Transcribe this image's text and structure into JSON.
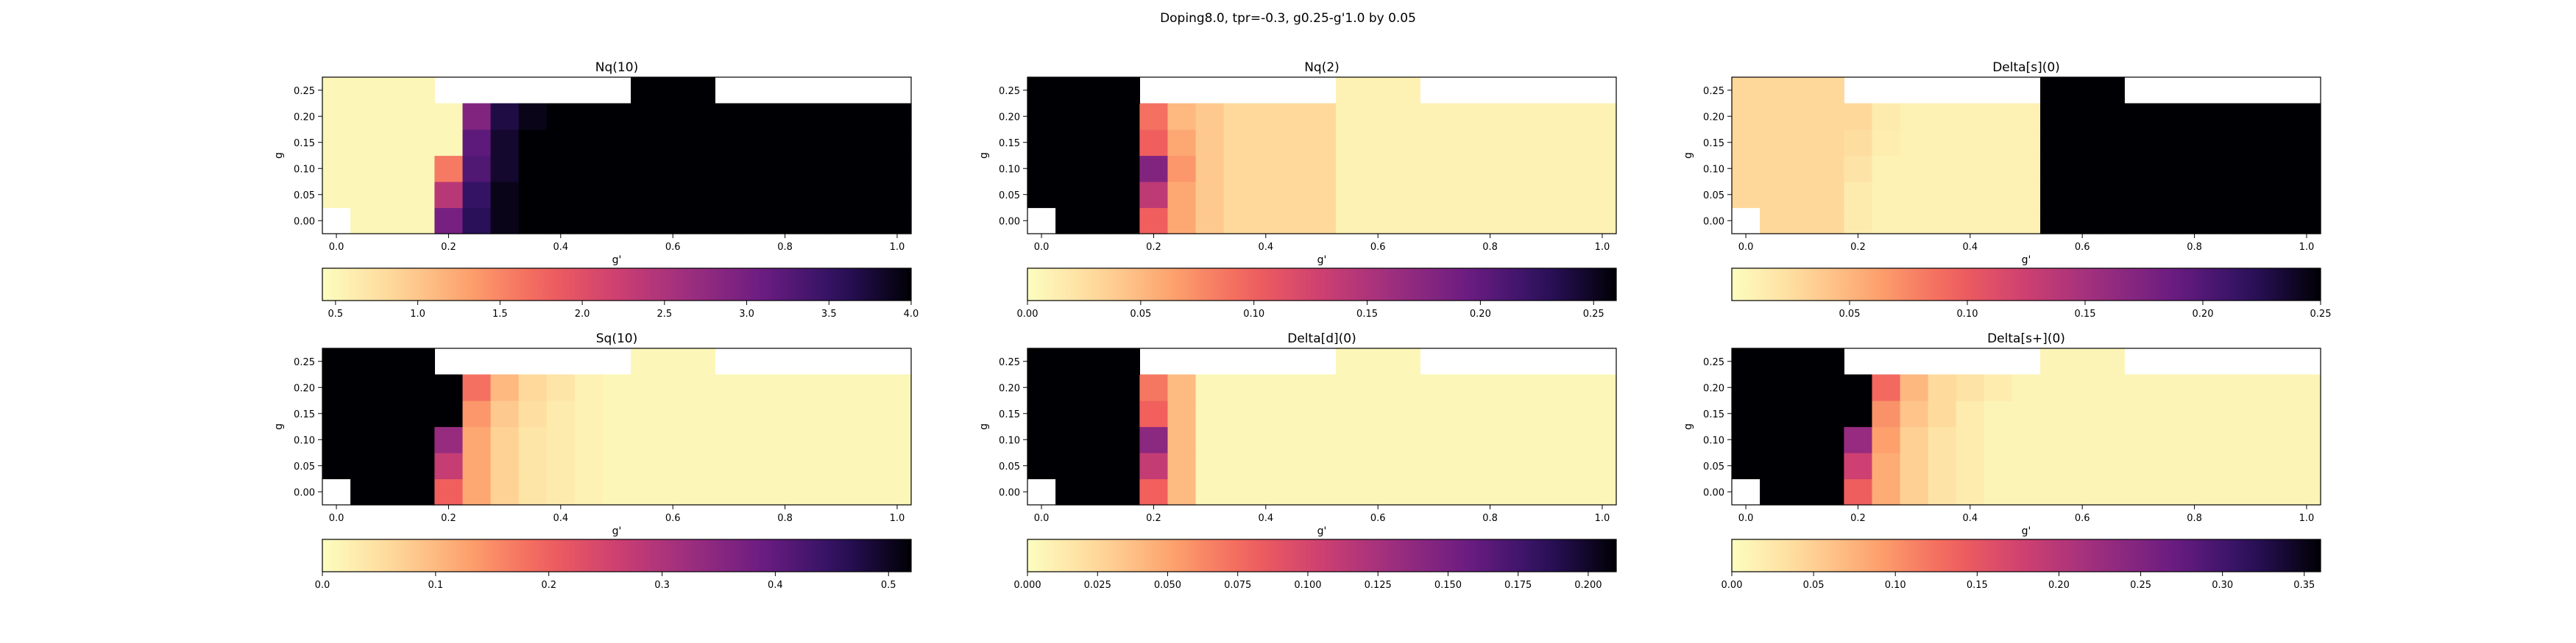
{
  "suptitle": "Doping8.0, tpr=-0.3, g0.25-g'1.0 by 0.05",
  "chart_data": [
    {
      "type": "heatmap",
      "title": "Nq(10)",
      "xlabel": "g'",
      "ylabel": "g",
      "xticks": [
        "0.0",
        "0.2",
        "0.4",
        "0.6",
        "0.8",
        "1.0"
      ],
      "yticks": [
        "0.00",
        "0.05",
        "0.10",
        "0.15",
        "0.20",
        "0.25"
      ],
      "colorbar_ticks": [
        "0.5",
        "1.0",
        "1.5",
        "2.0",
        "2.5",
        "3.0",
        "3.5",
        "4.0"
      ],
      "vmin": 0.42,
      "vmax": 4.0,
      "rows": [
        [
          null,
          0.5,
          0.5,
          0.5,
          3.0,
          3.6,
          3.9,
          4.0,
          4.0,
          4.0,
          4.0,
          4.0,
          4.0,
          4.0,
          4.0,
          4.0,
          4.0,
          4.0,
          4.0,
          4.0,
          4.0
        ],
        [
          0.5,
          0.5,
          0.5,
          0.5,
          2.4,
          3.5,
          3.9,
          4.0,
          4.0,
          4.0,
          4.0,
          4.0,
          4.0,
          4.0,
          4.0,
          4.0,
          4.0,
          4.0,
          4.0,
          4.0,
          4.0
        ],
        [
          0.5,
          0.5,
          0.5,
          0.5,
          1.6,
          3.3,
          3.8,
          4.0,
          4.0,
          4.0,
          4.0,
          4.0,
          4.0,
          4.0,
          4.0,
          4.0,
          4.0,
          4.0,
          4.0,
          4.0,
          4.0
        ],
        [
          0.5,
          0.5,
          0.5,
          0.5,
          0.5,
          3.2,
          3.8,
          4.0,
          4.0,
          4.0,
          4.0,
          4.0,
          4.0,
          4.0,
          4.0,
          4.0,
          4.0,
          4.0,
          4.0,
          4.0,
          4.0
        ],
        [
          0.5,
          0.5,
          0.5,
          0.5,
          0.5,
          2.9,
          3.7,
          3.9,
          4.0,
          4.0,
          4.0,
          4.0,
          4.0,
          4.0,
          4.0,
          4.0,
          4.0,
          4.0,
          4.0,
          4.0,
          4.0
        ],
        [
          0.5,
          0.5,
          0.5,
          0.5,
          null,
          null,
          null,
          null,
          null,
          null,
          null,
          4.0,
          4.0,
          4.0,
          null,
          null,
          null,
          null,
          null,
          null,
          null
        ]
      ]
    },
    {
      "type": "heatmap",
      "title": "Nq(2)",
      "xlabel": "g'",
      "ylabel": "g",
      "xticks": [
        "0.0",
        "0.2",
        "0.4",
        "0.6",
        "0.8",
        "1.0"
      ],
      "yticks": [
        "0.00",
        "0.05",
        "0.10",
        "0.15",
        "0.20",
        "0.25"
      ],
      "colorbar_ticks": [
        "0.00",
        "0.05",
        "0.10",
        "0.15",
        "0.20",
        "0.25"
      ],
      "vmin": 0.0,
      "vmax": 0.26,
      "rows": [
        [
          null,
          0.26,
          0.26,
          0.26,
          0.1,
          0.06,
          0.04,
          0.03,
          0.03,
          0.03,
          0.03,
          0.01,
          0.01,
          0.01,
          0.01,
          0.01,
          0.01,
          0.01,
          0.01,
          0.01,
          0.01
        ],
        [
          0.26,
          0.26,
          0.26,
          0.26,
          0.14,
          0.06,
          0.04,
          0.03,
          0.03,
          0.03,
          0.03,
          0.01,
          0.01,
          0.01,
          0.01,
          0.01,
          0.01,
          0.01,
          0.01,
          0.01,
          0.01
        ],
        [
          0.26,
          0.26,
          0.26,
          0.26,
          0.18,
          0.07,
          0.04,
          0.03,
          0.03,
          0.03,
          0.03,
          0.01,
          0.01,
          0.01,
          0.01,
          0.01,
          0.01,
          0.01,
          0.01,
          0.01,
          0.01
        ],
        [
          0.26,
          0.26,
          0.26,
          0.26,
          0.1,
          0.06,
          0.04,
          0.03,
          0.03,
          0.03,
          0.03,
          0.01,
          0.01,
          0.01,
          0.01,
          0.01,
          0.01,
          0.01,
          0.01,
          0.01,
          0.01
        ],
        [
          0.26,
          0.26,
          0.26,
          0.26,
          0.09,
          0.05,
          0.04,
          0.03,
          0.03,
          0.03,
          0.03,
          0.01,
          0.01,
          0.01,
          0.01,
          0.01,
          0.01,
          0.01,
          0.01,
          0.01,
          0.01
        ],
        [
          0.26,
          0.26,
          0.26,
          0.26,
          null,
          null,
          null,
          null,
          null,
          null,
          null,
          0.01,
          0.01,
          0.01,
          null,
          null,
          null,
          null,
          null,
          null,
          null
        ]
      ]
    },
    {
      "type": "heatmap",
      "title": "Delta[s](0)",
      "xlabel": "g'",
      "ylabel": "g",
      "xticks": [
        "0.0",
        "0.2",
        "0.4",
        "0.6",
        "0.8",
        "1.0"
      ],
      "yticks": [
        "0.00",
        "0.05",
        "0.10",
        "0.15",
        "0.20",
        "0.25"
      ],
      "colorbar_ticks": [
        "0.05",
        "0.10",
        "0.15",
        "0.20",
        "0.25"
      ],
      "vmin": 0.0,
      "vmax": 0.25,
      "rows": [
        [
          null,
          0.03,
          0.03,
          0.03,
          0.015,
          0.01,
          0.01,
          0.01,
          0.01,
          0.01,
          0.01,
          0.25,
          0.25,
          0.25,
          0.25,
          0.25,
          0.25,
          0.25,
          0.25,
          0.25,
          0.25
        ],
        [
          0.03,
          0.03,
          0.03,
          0.03,
          0.015,
          0.01,
          0.01,
          0.01,
          0.01,
          0.01,
          0.01,
          0.25,
          0.25,
          0.25,
          0.25,
          0.25,
          0.25,
          0.25,
          0.25,
          0.25,
          0.25
        ],
        [
          0.03,
          0.03,
          0.03,
          0.03,
          0.02,
          0.01,
          0.01,
          0.01,
          0.01,
          0.01,
          0.01,
          0.25,
          0.25,
          0.25,
          0.25,
          0.25,
          0.25,
          0.25,
          0.25,
          0.25,
          0.25
        ],
        [
          0.03,
          0.03,
          0.03,
          0.03,
          0.025,
          0.012,
          0.01,
          0.01,
          0.01,
          0.01,
          0.01,
          0.25,
          0.25,
          0.25,
          0.25,
          0.25,
          0.25,
          0.25,
          0.25,
          0.25,
          0.25
        ],
        [
          0.03,
          0.03,
          0.03,
          0.03,
          0.03,
          0.015,
          0.01,
          0.01,
          0.01,
          0.01,
          0.01,
          0.25,
          0.25,
          0.25,
          0.25,
          0.25,
          0.25,
          0.25,
          0.25,
          0.25,
          0.25
        ],
        [
          0.03,
          0.03,
          0.03,
          0.03,
          null,
          null,
          null,
          null,
          null,
          null,
          null,
          0.25,
          0.25,
          0.25,
          null,
          null,
          null,
          null,
          null,
          null,
          null
        ]
      ]
    },
    {
      "type": "heatmap",
      "title": "Sq(10)",
      "xlabel": "g'",
      "ylabel": "g",
      "xticks": [
        "0.0",
        "0.2",
        "0.4",
        "0.6",
        "0.8",
        "1.0"
      ],
      "yticks": [
        "0.00",
        "0.05",
        "0.10",
        "0.15",
        "0.20",
        "0.25"
      ],
      "colorbar_ticks": [
        "0.0",
        "0.1",
        "0.2",
        "0.3",
        "0.4",
        "0.5"
      ],
      "vmin": 0.0,
      "vmax": 0.52,
      "rows": [
        [
          null,
          0.52,
          0.52,
          0.52,
          0.2,
          0.12,
          0.07,
          0.04,
          0.03,
          0.02,
          0.01,
          0.01,
          0.01,
          0.01,
          0.01,
          0.01,
          0.01,
          0.01,
          0.01,
          0.01,
          0.01
        ],
        [
          0.52,
          0.52,
          0.52,
          0.52,
          0.27,
          0.12,
          0.07,
          0.04,
          0.03,
          0.02,
          0.01,
          0.01,
          0.01,
          0.01,
          0.01,
          0.01,
          0.01,
          0.01,
          0.01,
          0.01,
          0.01
        ],
        [
          0.52,
          0.52,
          0.52,
          0.52,
          0.33,
          0.12,
          0.07,
          0.04,
          0.03,
          0.02,
          0.01,
          0.01,
          0.01,
          0.01,
          0.01,
          0.01,
          0.01,
          0.01,
          0.01,
          0.01,
          0.01
        ],
        [
          0.52,
          0.52,
          0.52,
          0.52,
          0.52,
          0.14,
          0.08,
          0.05,
          0.03,
          0.02,
          0.01,
          0.01,
          0.01,
          0.01,
          0.01,
          0.01,
          0.01,
          0.01,
          0.01,
          0.01,
          0.01
        ],
        [
          0.52,
          0.52,
          0.52,
          0.52,
          0.52,
          0.18,
          0.1,
          0.06,
          0.04,
          0.02,
          0.01,
          0.01,
          0.01,
          0.01,
          0.01,
          0.01,
          0.01,
          0.01,
          0.01,
          0.01,
          0.01
        ],
        [
          0.52,
          0.52,
          0.52,
          0.52,
          null,
          null,
          null,
          null,
          null,
          null,
          null,
          0.01,
          0.01,
          0.01,
          null,
          null,
          null,
          null,
          null,
          null,
          null
        ]
      ]
    },
    {
      "type": "heatmap",
      "title": "Delta[d](0)",
      "xlabel": "g'",
      "ylabel": "g",
      "xticks": [
        "0.0",
        "0.2",
        "0.4",
        "0.6",
        "0.8",
        "1.0"
      ],
      "yticks": [
        "0.00",
        "0.05",
        "0.10",
        "0.15",
        "0.20",
        "0.25"
      ],
      "colorbar_ticks": [
        "0.000",
        "0.025",
        "0.050",
        "0.075",
        "0.100",
        "0.125",
        "0.150",
        "0.175",
        "0.200"
      ],
      "vmin": 0.0,
      "vmax": 0.21,
      "rows": [
        [
          null,
          0.21,
          0.21,
          0.21,
          0.08,
          0.04,
          0.005,
          0.005,
          0.005,
          0.005,
          0.005,
          0.005,
          0.005,
          0.005,
          0.005,
          0.005,
          0.005,
          0.005,
          0.005,
          0.005,
          0.005
        ],
        [
          0.21,
          0.21,
          0.21,
          0.21,
          0.11,
          0.04,
          0.005,
          0.005,
          0.005,
          0.005,
          0.005,
          0.005,
          0.005,
          0.005,
          0.005,
          0.005,
          0.005,
          0.005,
          0.005,
          0.005,
          0.005
        ],
        [
          0.21,
          0.21,
          0.21,
          0.21,
          0.14,
          0.04,
          0.005,
          0.005,
          0.005,
          0.005,
          0.005,
          0.005,
          0.005,
          0.005,
          0.005,
          0.005,
          0.005,
          0.005,
          0.005,
          0.005,
          0.005
        ],
        [
          0.21,
          0.21,
          0.21,
          0.21,
          0.08,
          0.04,
          0.005,
          0.005,
          0.005,
          0.005,
          0.005,
          0.005,
          0.005,
          0.005,
          0.005,
          0.005,
          0.005,
          0.005,
          0.005,
          0.005,
          0.005
        ],
        [
          0.21,
          0.21,
          0.21,
          0.21,
          0.07,
          0.04,
          0.005,
          0.005,
          0.005,
          0.005,
          0.005,
          0.005,
          0.005,
          0.005,
          0.005,
          0.005,
          0.005,
          0.005,
          0.005,
          0.005,
          0.005
        ],
        [
          0.21,
          0.21,
          0.21,
          0.21,
          null,
          null,
          null,
          null,
          null,
          null,
          null,
          0.005,
          0.005,
          0.005,
          null,
          null,
          null,
          null,
          null,
          null,
          null
        ]
      ]
    },
    {
      "type": "heatmap",
      "title": "Delta[s+](0)",
      "xlabel": "g'",
      "ylabel": "g",
      "xticks": [
        "0.0",
        "0.2",
        "0.4",
        "0.6",
        "0.8",
        "1.0"
      ],
      "yticks": [
        "0.00",
        "0.05",
        "0.10",
        "0.15",
        "0.20",
        "0.25"
      ],
      "colorbar_ticks": [
        "0.00",
        "0.05",
        "0.10",
        "0.15",
        "0.20",
        "0.25",
        "0.30",
        "0.35"
      ],
      "vmin": 0.0,
      "vmax": 0.36,
      "rows": [
        [
          null,
          0.36,
          0.36,
          0.36,
          0.14,
          0.08,
          0.05,
          0.03,
          0.02,
          0.01,
          0.01,
          0.01,
          0.01,
          0.01,
          0.01,
          0.01,
          0.01,
          0.01,
          0.01,
          0.01,
          0.01
        ],
        [
          0.36,
          0.36,
          0.36,
          0.36,
          0.18,
          0.08,
          0.05,
          0.03,
          0.02,
          0.01,
          0.01,
          0.01,
          0.01,
          0.01,
          0.01,
          0.01,
          0.01,
          0.01,
          0.01,
          0.01,
          0.01
        ],
        [
          0.36,
          0.36,
          0.36,
          0.36,
          0.23,
          0.09,
          0.05,
          0.03,
          0.02,
          0.01,
          0.01,
          0.01,
          0.01,
          0.01,
          0.01,
          0.01,
          0.01,
          0.01,
          0.01,
          0.01,
          0.01
        ],
        [
          0.36,
          0.36,
          0.36,
          0.36,
          0.36,
          0.1,
          0.06,
          0.04,
          0.02,
          0.01,
          0.01,
          0.01,
          0.01,
          0.01,
          0.01,
          0.01,
          0.01,
          0.01,
          0.01,
          0.01,
          0.01
        ],
        [
          0.36,
          0.36,
          0.36,
          0.36,
          0.36,
          0.13,
          0.07,
          0.04,
          0.03,
          0.02,
          0.01,
          0.01,
          0.01,
          0.01,
          0.01,
          0.01,
          0.01,
          0.01,
          0.01,
          0.01,
          0.01
        ],
        [
          0.36,
          0.36,
          0.36,
          0.36,
          null,
          null,
          null,
          null,
          null,
          null,
          null,
          0.01,
          0.01,
          0.01,
          null,
          null,
          null,
          null,
          null,
          null,
          null
        ]
      ]
    }
  ]
}
